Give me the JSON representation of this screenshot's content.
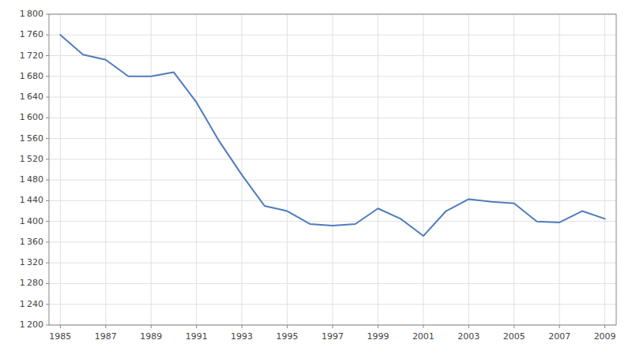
{
  "chart_data": {
    "type": "line",
    "x": [
      1985,
      1986,
      1987,
      1988,
      1989,
      1990,
      1991,
      1992,
      1993,
      1994,
      1995,
      1996,
      1997,
      1998,
      1999,
      2000,
      2001,
      2002,
      2003,
      2004,
      2005,
      2006,
      2007,
      2008,
      2009
    ],
    "values": [
      1760,
      1722,
      1712,
      1680,
      1680,
      1688,
      1630,
      1555,
      1490,
      1430,
      1420,
      1395,
      1392,
      1395,
      1425,
      1405,
      1372,
      1420,
      1443,
      1438,
      1435,
      1400,
      1398,
      1420,
      1405
    ],
    "color": "#4f7cbe",
    "xlim": [
      1984.5,
      2009.5
    ],
    "ylim": [
      1200,
      1800
    ],
    "xticks": [
      1985,
      1987,
      1989,
      1991,
      1993,
      1995,
      1997,
      1999,
      2001,
      2003,
      2005,
      2007,
      2009
    ],
    "yticks": [
      {
        "value": 1200,
        "label": "1 200"
      },
      {
        "value": 1240,
        "label": "1 240"
      },
      {
        "value": 1280,
        "label": "1 280"
      },
      {
        "value": 1320,
        "label": "1 320"
      },
      {
        "value": 1360,
        "label": "1 360"
      },
      {
        "value": 1400,
        "label": "1 400"
      },
      {
        "value": 1440,
        "label": "1 440"
      },
      {
        "value": 1480,
        "label": "1 480"
      },
      {
        "value": 1520,
        "label": "1 520"
      },
      {
        "value": 1560,
        "label": "1 560"
      },
      {
        "value": 1600,
        "label": "1 600"
      },
      {
        "value": 1640,
        "label": "1 640"
      },
      {
        "value": 1680,
        "label": "1 680"
      },
      {
        "value": 1720,
        "label": "1 720"
      },
      {
        "value": 1760,
        "label": "1 760"
      },
      {
        "value": 1800,
        "label": "1 800"
      }
    ],
    "grid": true
  }
}
